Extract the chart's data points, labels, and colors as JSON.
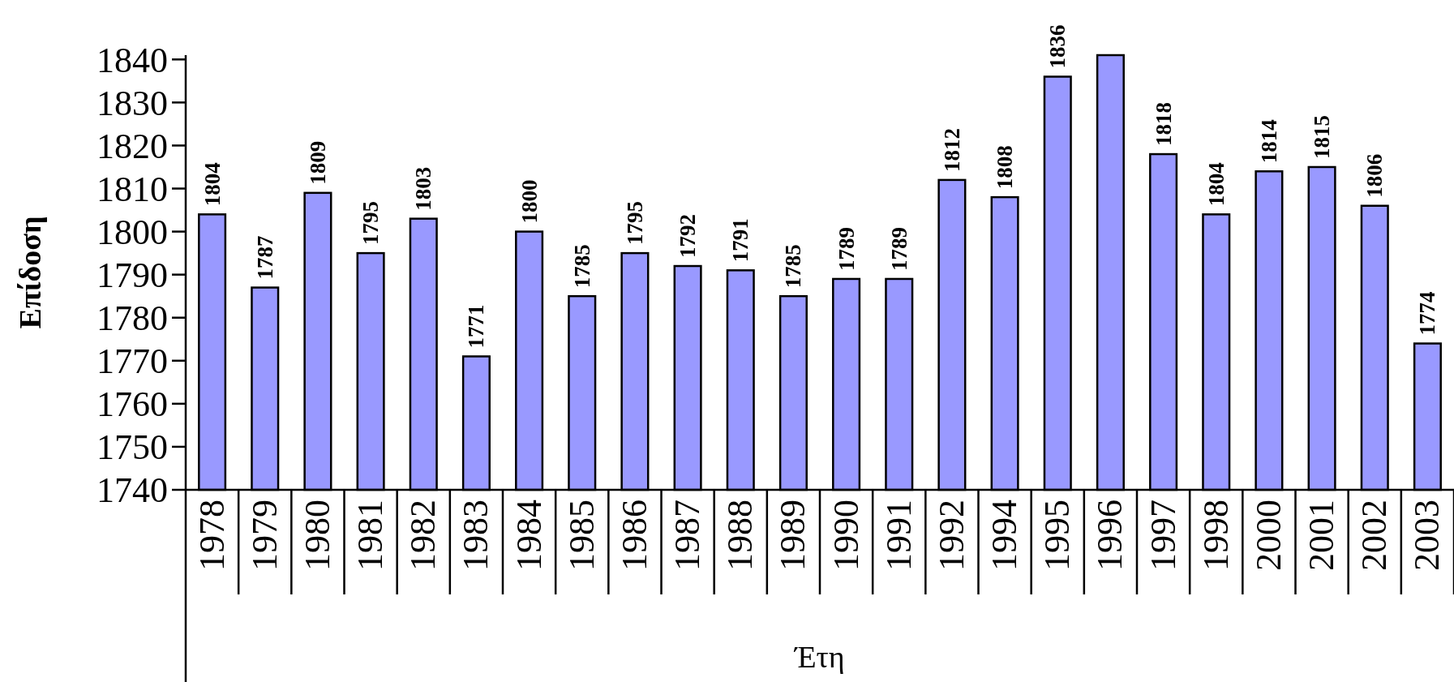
{
  "chart_data": {
    "type": "bar",
    "xlabel": "Έτη",
    "ylabel": "Επίδοση",
    "categories": [
      "1978",
      "1979",
      "1980",
      "1981",
      "1982",
      "1983",
      "1984",
      "1985",
      "1986",
      "1987",
      "1988",
      "1989",
      "1990",
      "1991",
      "1992",
      "1994",
      "1995",
      "1996",
      "1997",
      "1998",
      "2000",
      "2001",
      "2002",
      "2003"
    ],
    "values": [
      1804,
      1787,
      1809,
      1795,
      1803,
      1771,
      1800,
      1785,
      1795,
      1792,
      1791,
      1785,
      1789,
      1789,
      1812,
      1808,
      1836,
      1841,
      1818,
      1804,
      1814,
      1815,
      1806,
      1774
    ],
    "value_labels": [
      "1804",
      "1787",
      "1809",
      "1795",
      "1803",
      "1771",
      "1800",
      "1785",
      "1795",
      "1792",
      "1791",
      "1785",
      "1789",
      "1789",
      "1812",
      "1808",
      "1836",
      null,
      "1818",
      "1804",
      "1814",
      "1815",
      "1806",
      "1774"
    ],
    "color": "#9999ff",
    "ylim": [
      1740,
      1841
    ],
    "yticks": [
      1740,
      1750,
      1760,
      1770,
      1780,
      1790,
      1800,
      1810,
      1820,
      1830,
      1840
    ],
    "grid": false
  }
}
